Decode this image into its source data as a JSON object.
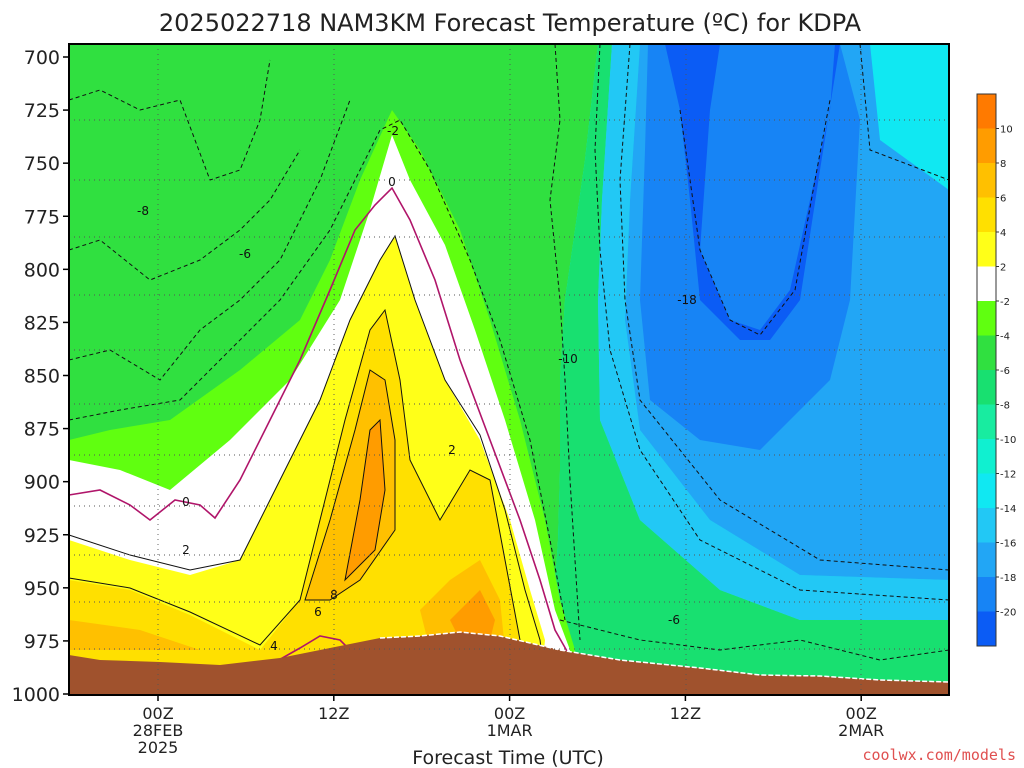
{
  "chart_data": {
    "type": "contour",
    "title": "2025022718 NAM3KM Forecast Temperature (ºC) for KDPA",
    "xlabel": "Forecast Time (UTC)",
    "ylabel": "",
    "credit": "coolwx.com/models",
    "y_ticks": [
      "700",
      "725",
      "750",
      "775",
      "800",
      "825",
      "850",
      "875",
      "900",
      "925",
      "950",
      "975",
      "1000"
    ],
    "x_ticks": [
      {
        "lines": [
          "00Z",
          "28FEB",
          "2025"
        ]
      },
      {
        "lines": [
          "12Z"
        ]
      },
      {
        "lines": [
          "00Z",
          "1MAR"
        ]
      },
      {
        "lines": [
          "12Z"
        ]
      },
      {
        "lines": [
          "00Z",
          "2MAR"
        ]
      }
    ],
    "colorbar": {
      "levels": [
        "-20",
        "-18",
        "-16",
        "-14",
        "-12",
        "-10",
        "-8",
        "-6",
        "-4",
        "-2",
        "2",
        "4",
        "6",
        "8",
        "10"
      ],
      "colors": [
        "#0b5cf5",
        "#1784f5",
        "#22a6f5",
        "#22c8f5",
        "#10e8f2",
        "#10f0d0",
        "#18eca0",
        "#18e070",
        "#30e040",
        "#60ff10",
        "#ffffff",
        "#ffff18",
        "#ffe000",
        "#ffc000",
        "#ff9c00",
        "#ff7a00"
      ]
    },
    "contour_labels": [
      "-2",
      "0",
      "-8",
      "-6",
      "-18",
      "-10",
      "2",
      "0",
      "2",
      "8",
      "6",
      "4",
      "-6"
    ],
    "grid": true
  },
  "colors": {
    "terrain": "#a0522d",
    "freezing_line": "#b0156a"
  }
}
